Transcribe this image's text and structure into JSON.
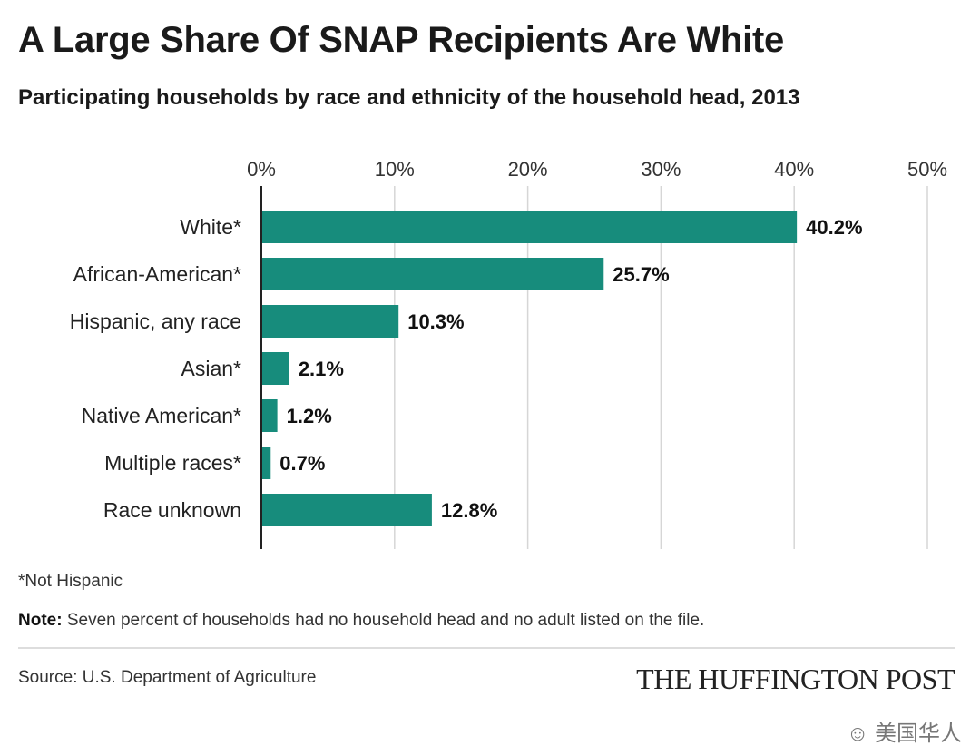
{
  "chart_data": {
    "type": "bar",
    "orientation": "horizontal",
    "title": "A Large Share Of SNAP Recipients Are White",
    "subtitle": "Participating households by race and ethnicity of the household head, 2013",
    "categories": [
      "White*",
      "African-American*",
      "Hispanic, any race",
      "Asian*",
      "Native American*",
      "Multiple races*",
      "Race unknown"
    ],
    "values": [
      40.2,
      25.7,
      10.3,
      2.1,
      1.2,
      0.7,
      12.8
    ],
    "value_labels": [
      "40.2%",
      "25.7%",
      "10.3%",
      "2.1%",
      "1.2%",
      "0.7%",
      "12.8%"
    ],
    "xlim": [
      0,
      50
    ],
    "xticks": [
      0,
      10,
      20,
      30,
      40,
      50
    ],
    "xtick_labels": [
      "0%",
      "10%",
      "20%",
      "30%",
      "40%",
      "50%"
    ],
    "xlabel": "",
    "ylabel": "",
    "grid": true,
    "axis_position": "top",
    "bar_color": "#178c7c"
  },
  "footnote": "*Not Hispanic",
  "note_label": "Note:",
  "note_text": " Seven percent of households had no household head and no adult listed on the file.",
  "source": "Source: U.S. Department of Agriculture",
  "logo": "THE HUFFINGTON POST",
  "watermark": "美国华人"
}
